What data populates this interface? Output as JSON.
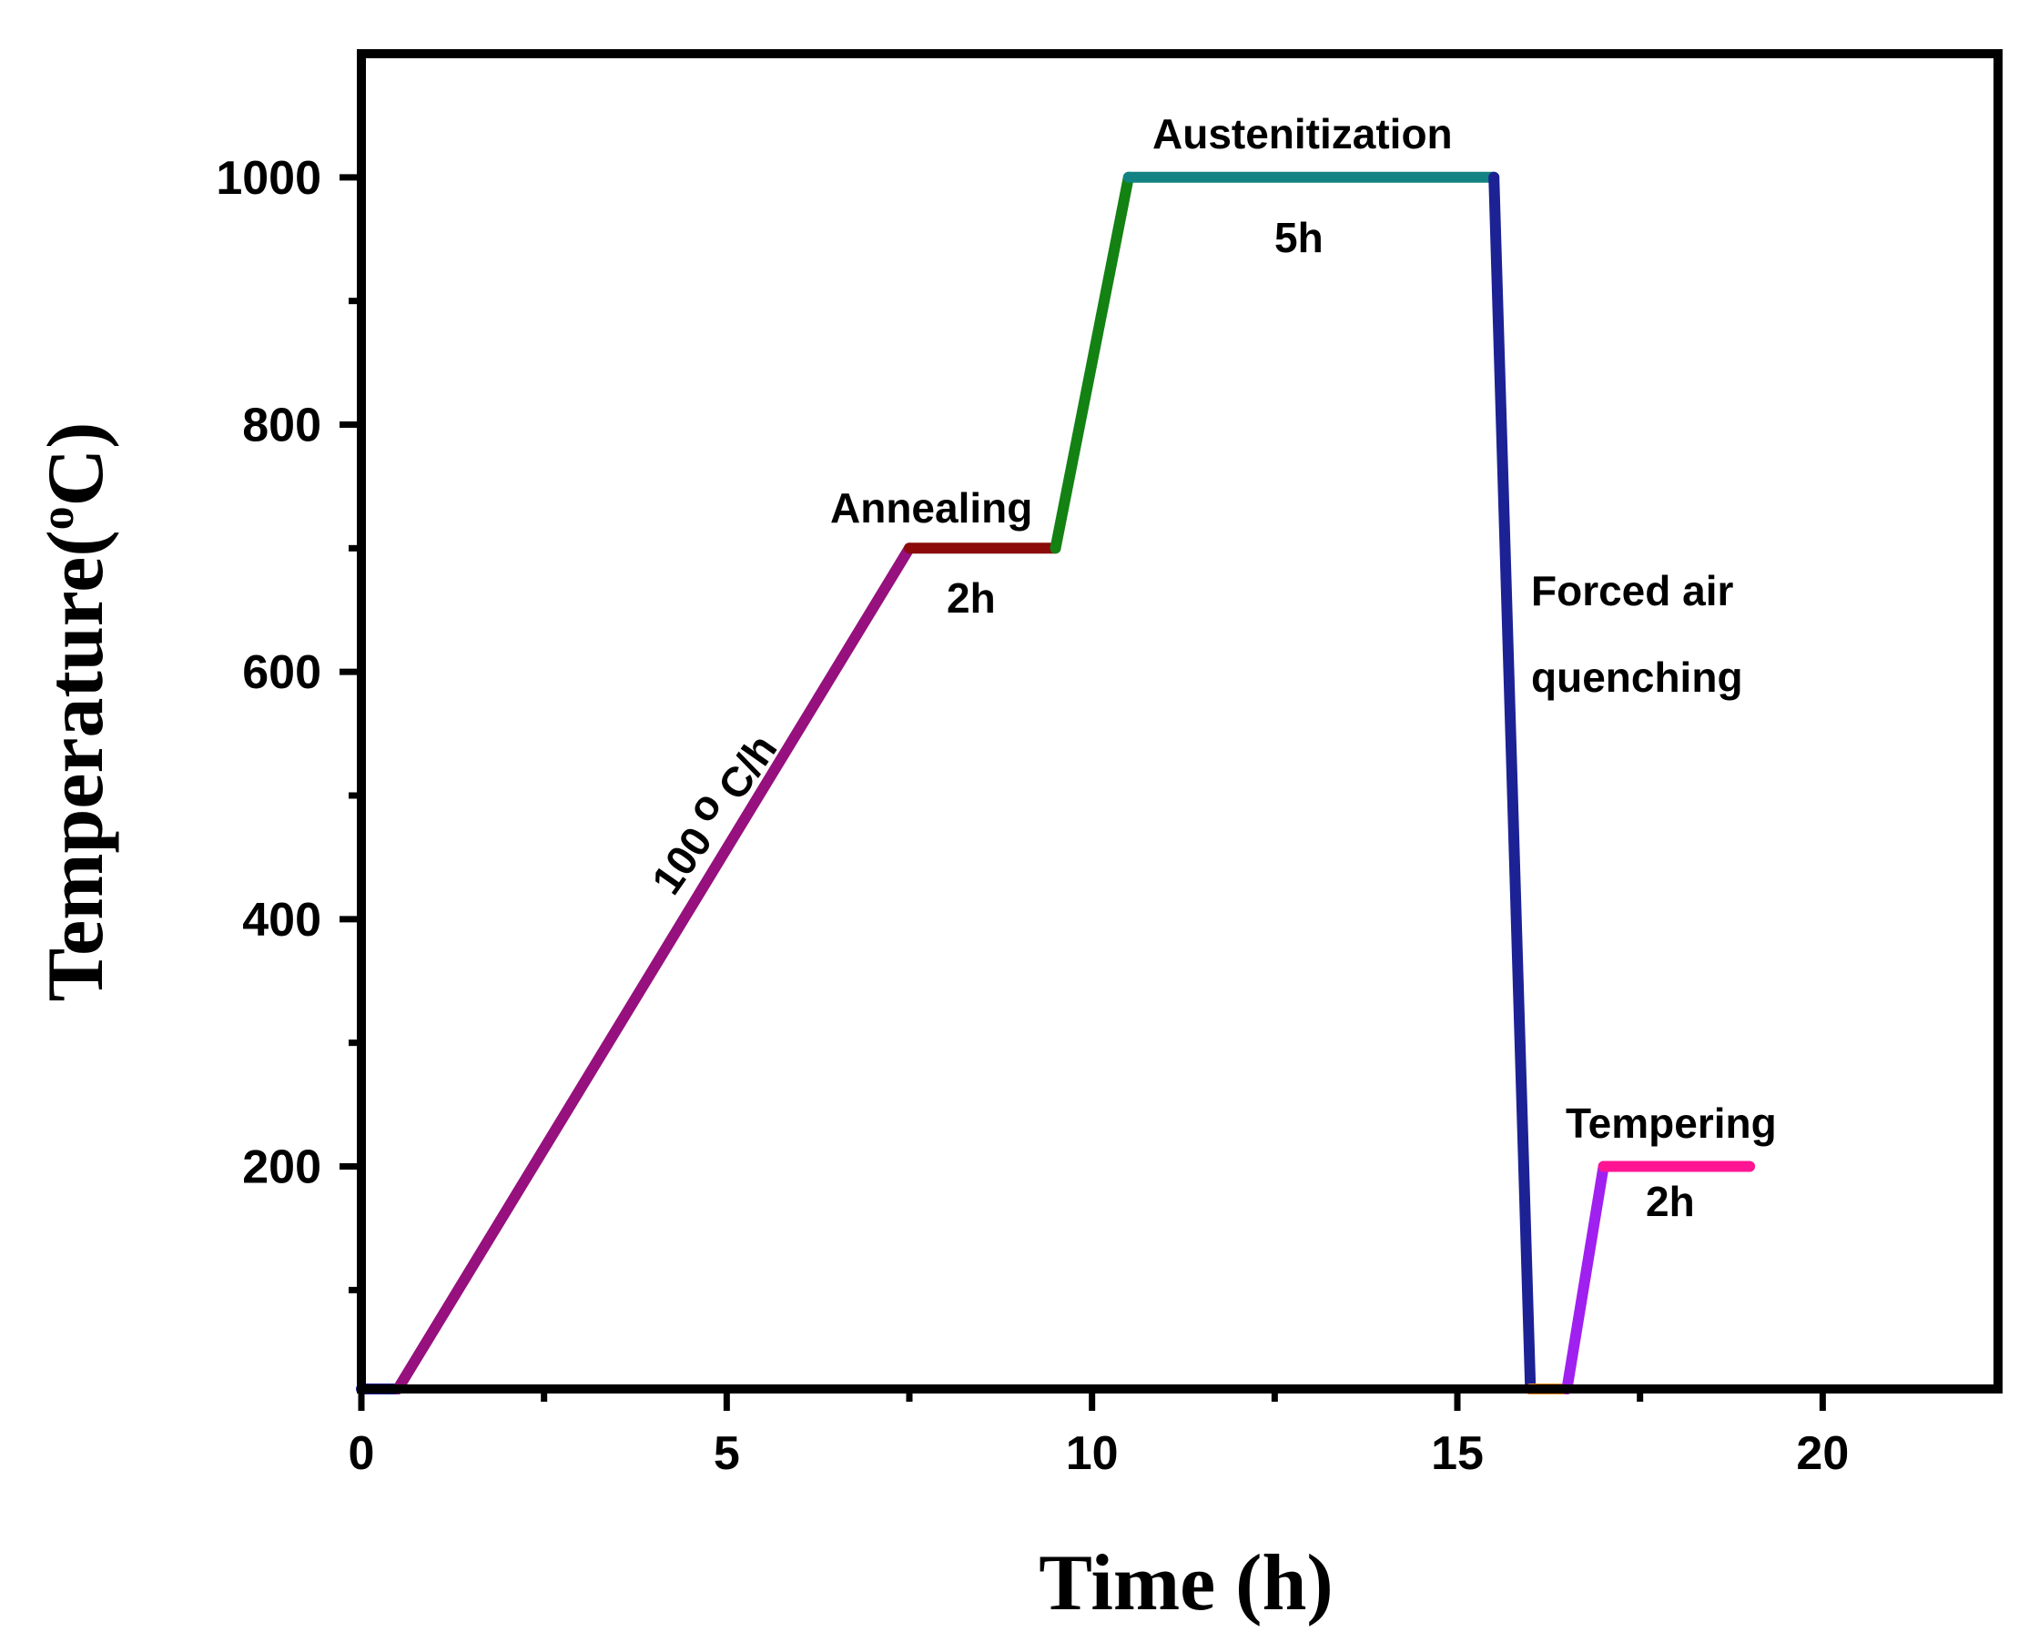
{
  "chart_data": {
    "type": "line",
    "title": "",
    "xlabel": "Time (h)",
    "ylabel": "Temperature(",
    "ylabel_sup": "o",
    "ylabel_end": "C)",
    "xlim": [
      0,
      22.4
    ],
    "ylim": [
      20,
      1100
    ],
    "xticks_major": [
      0,
      5,
      10,
      15,
      20
    ],
    "xticks_major_labels": [
      "0",
      "5",
      "10",
      "15",
      "20"
    ],
    "xticks_minor": [
      2.5,
      7.5,
      12.5,
      17.5
    ],
    "yticks_major": [
      200,
      400,
      600,
      800,
      1000
    ],
    "yticks_major_labels": [
      "200",
      "400",
      "600",
      "800",
      "1000"
    ],
    "yticks_minor": [
      100,
      300,
      500,
      700,
      900
    ],
    "series": [
      {
        "name": "room-temperature-start",
        "color": "#1a1a8c",
        "points": [
          [
            0,
            20
          ],
          [
            0.5,
            20
          ]
        ]
      },
      {
        "name": "heating-ramp",
        "color": "#96107e",
        "points": [
          [
            0.5,
            20
          ],
          [
            7.5,
            700
          ]
        ]
      },
      {
        "name": "annealing-hold",
        "color": "#8b0a0a",
        "points": [
          [
            7.5,
            700
          ],
          [
            9.5,
            700
          ]
        ]
      },
      {
        "name": "heating-to-austenitization",
        "color": "#138213",
        "points": [
          [
            9.5,
            700
          ],
          [
            10.5,
            1000
          ]
        ]
      },
      {
        "name": "austenitization-hold",
        "color": "#138282",
        "points": [
          [
            10.5,
            1000
          ],
          [
            15.5,
            1000
          ]
        ]
      },
      {
        "name": "forced-air-quenching",
        "color": "#1c2294",
        "points": [
          [
            15.5,
            1000
          ],
          [
            16.0,
            20
          ]
        ]
      },
      {
        "name": "room-temperature-rest",
        "color": "#ff8c1a",
        "points": [
          [
            16.0,
            20
          ],
          [
            16.5,
            20
          ]
        ]
      },
      {
        "name": "heating-to-tempering",
        "color": "#a020f0",
        "points": [
          [
            16.5,
            20
          ],
          [
            17.0,
            200
          ]
        ]
      },
      {
        "name": "tempering-hold",
        "color": "#ff1493",
        "points": [
          [
            17.0,
            200
          ],
          [
            19.0,
            200
          ]
        ]
      }
    ],
    "annotations": {
      "ramp_rate_a": "100",
      "ramp_rate_sup": "o",
      "ramp_rate_b": "C/h",
      "annealing": "Annealing",
      "annealing_time": "2h",
      "austenitization": "Austenitization",
      "austenitization_time": "5h",
      "quench_line1": "Forced air",
      "quench_line2": "quenching",
      "tempering": "Tempering",
      "tempering_time": "2h"
    }
  }
}
